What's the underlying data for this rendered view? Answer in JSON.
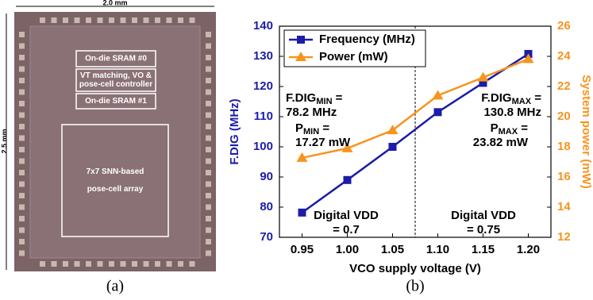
{
  "die_photo": {
    "width_label": "2.0 mm",
    "height_label": "2.5 mm",
    "blocks": [
      [
        "On-die SRAM #0"
      ],
      [
        "VT matching, VO &",
        "pose-cell controller"
      ],
      [
        "On-die SRAM #1"
      ],
      [
        "7x7 SNN-based",
        "pose-cell array"
      ]
    ],
    "caption": "(a)"
  },
  "chart_data": {
    "type": "line",
    "caption": "(b)",
    "x_label": "VCO supply voltage (V)",
    "y_label": "F.DIG (MHz)",
    "y2_label": "System power (mW)",
    "x": [
      0.95,
      1.0,
      1.05,
      1.1,
      1.15,
      1.2
    ],
    "xlim": [
      0.925,
      1.225
    ],
    "xticks": [
      0.95,
      {
        "value": 1.0,
        "label": "1.00"
      },
      1.05,
      {
        "value": 1.1,
        "label": "1.10"
      },
      1.15,
      {
        "value": 1.2,
        "label": "1.20"
      }
    ],
    "ylim": [
      70,
      140
    ],
    "yticks": [
      70,
      80,
      90,
      100,
      110,
      120,
      130,
      140
    ],
    "y2lim": [
      12,
      26
    ],
    "y2ticks": [
      12,
      14,
      16,
      18,
      20,
      22,
      24,
      26
    ],
    "legend": "upper-left",
    "series": [
      {
        "name": "Frequency (MHz)",
        "color": "#1c1ca8",
        "marker": "square",
        "values": [
          78.2,
          89,
          100,
          111.5,
          121.2,
          130.8
        ]
      },
      {
        "name": "Power (mW)",
        "color": "#f7941d",
        "marker": "triangle",
        "axis": "y2",
        "values": [
          17.27,
          17.9,
          19.1,
          21.4,
          22.6,
          23.82
        ]
      }
    ],
    "annotations": [
      {
        "main": "F.DIG",
        "sub": "MIN",
        "rest": " =",
        "line2": "78.2 MHz"
      },
      {
        "main": "P",
        "sub": "MIN",
        "rest": " =",
        "line2": "17.27 mW"
      },
      {
        "main": "F.DIG",
        "sub": "MAX",
        "rest": " =",
        "line2": "130.8 MHz"
      },
      {
        "main": "P",
        "sub": "MAX",
        "rest": " =",
        "line2": "23.82 mW"
      },
      {
        "main": "Digital VDD",
        "line2": "= 0.7"
      },
      {
        "main": "Digital VDD",
        "line2": "= 0.75"
      }
    ]
  }
}
